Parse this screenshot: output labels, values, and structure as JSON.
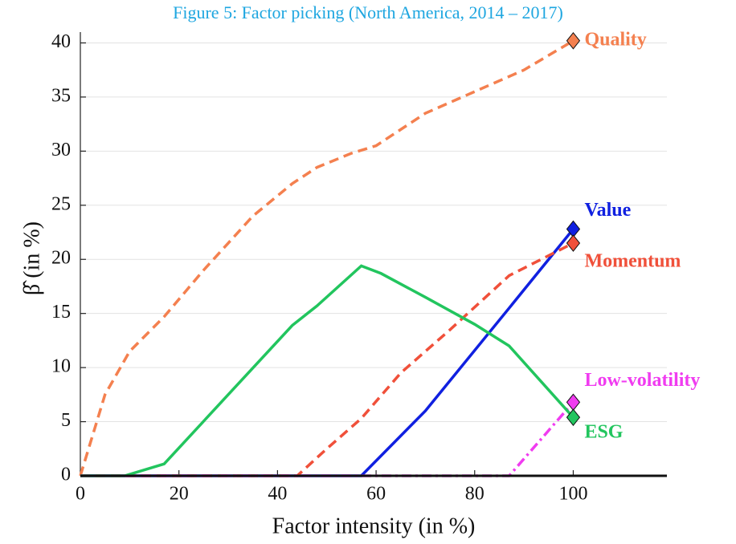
{
  "chart_data": {
    "type": "line",
    "title": "Figure 5: Factor picking (North America, 2014 – 2017)",
    "xlabel": "Factor intensity (in %)",
    "ylabel": "β̂ (in %)",
    "xlim": [
      0,
      119
    ],
    "ylim": [
      0,
      41
    ],
    "xticks": [
      0,
      20,
      40,
      60,
      80,
      100
    ],
    "yticks": [
      0,
      5,
      10,
      15,
      20,
      25,
      30,
      35,
      40
    ],
    "grid": "y",
    "series": [
      {
        "name": "Quality",
        "color": "#f4804f",
        "style": "dashed",
        "x": [
          0,
          5,
          10,
          17,
          25,
          30,
          35,
          43,
          48,
          55,
          60,
          65,
          70,
          80,
          90,
          100
        ],
        "values": [
          0,
          7.5,
          11.5,
          14.7,
          19,
          21.5,
          24,
          27,
          28.5,
          29.8,
          30.5,
          32,
          33.5,
          35.5,
          37.5,
          40.2
        ]
      },
      {
        "name": "Value",
        "color": "#1020e0",
        "style": "solid",
        "x": [
          0,
          57,
          70,
          87,
          100
        ],
        "values": [
          0,
          0,
          6,
          15.5,
          22.8
        ]
      },
      {
        "name": "Momentum",
        "color": "#f0503a",
        "style": "dashed",
        "x": [
          0,
          44,
          50,
          57,
          65,
          75,
          87,
          100
        ],
        "values": [
          0,
          0,
          2.5,
          5.3,
          9.5,
          13.5,
          18.5,
          21.5
        ]
      },
      {
        "name": "Low-volatility",
        "color": "#f03cf0",
        "style": "dashdot",
        "x": [
          0,
          87,
          100
        ],
        "values": [
          0,
          0,
          6.8
        ]
      },
      {
        "name": "ESG",
        "color": "#22c55e",
        "style": "solid",
        "x": [
          0,
          9,
          17,
          30,
          43,
          48,
          57,
          61,
          70,
          80,
          87,
          100
        ],
        "values": [
          0,
          0,
          1.1,
          7.5,
          13.9,
          15.7,
          19.4,
          18.7,
          16.5,
          14,
          12,
          5.4
        ]
      }
    ]
  }
}
